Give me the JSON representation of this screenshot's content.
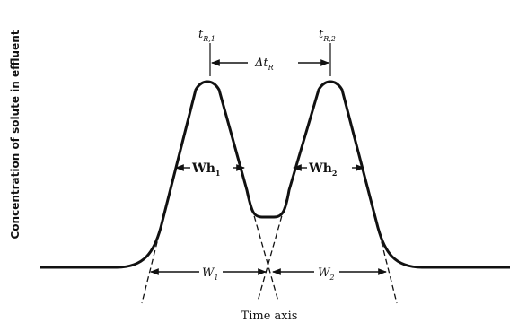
{
  "y_axis_label": "Concentration of solute in effluent",
  "x_axis_label": "Time axis",
  "retention_time_1": {
    "main": "t",
    "sub": "R,1"
  },
  "retention_time_2": {
    "main": "t",
    "sub": "R,2"
  },
  "retention_difference": {
    "prefix": "Δ",
    "main": "t",
    "sub": "R"
  },
  "half_width_1": {
    "main": "Wh",
    "sub": "1"
  },
  "half_width_2": {
    "main": "Wh",
    "sub": "2"
  },
  "base_width_1": {
    "main": "W",
    "sub": "1"
  },
  "base_width_2": {
    "main": "W",
    "sub": "2"
  }
}
